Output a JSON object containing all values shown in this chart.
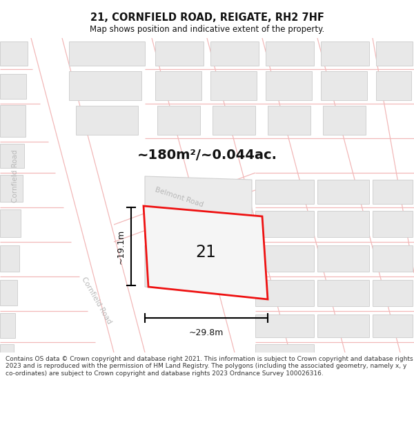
{
  "title": "21, CORNFIELD ROAD, REIGATE, RH2 7HF",
  "subtitle": "Map shows position and indicative extent of the property.",
  "area_label": "~180m²/~0.044ac.",
  "property_number": "21",
  "width_label": "~29.8m",
  "height_label": "~19.1m",
  "footer": "Contains OS data © Crown copyright and database right 2021. This information is subject to Crown copyright and database rights 2023 and is reproduced with the permission of HM Land Registry. The polygons (including the associated geometry, namely x, y co-ordinates) are subject to Crown copyright and database rights 2023 Ordnance Survey 100026316.",
  "bg_color": "#ffffff",
  "road_color": "#f2b8b8",
  "building_fill": "#e8e8e8",
  "building_stroke": "#d0d0d0",
  "property_stroke": "#ee1111",
  "road_label_color": "#b8b8b8",
  "title_fontsize": 10.5,
  "subtitle_fontsize": 8.5,
  "area_fontsize": 14,
  "footer_fontsize": 6.5
}
